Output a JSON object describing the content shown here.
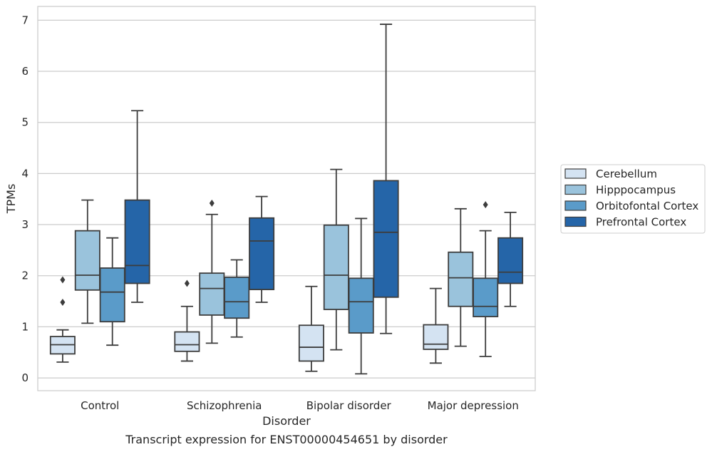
{
  "chart_data": {
    "type": "box",
    "title": "Transcript expression for ENST00000454651 by disorder",
    "xlabel": "Disorder",
    "ylabel": "TPMs",
    "ylim": [
      -0.25,
      7.27
    ],
    "yticks": [
      0,
      1,
      2,
      3,
      4,
      5,
      6,
      7
    ],
    "grid": true,
    "legend_position": "right",
    "categories": [
      "Control",
      "Schizophrenia",
      "Bipolar disorder",
      "Major depression"
    ],
    "series": [
      {
        "name": "Cerebellum",
        "color": "#d4e3f2",
        "boxes": [
          {
            "whisker_low": 0.31,
            "q1": 0.47,
            "median": 0.65,
            "q3": 0.81,
            "whisker_high": 0.94,
            "outliers": [
              1.48,
              1.92
            ]
          },
          {
            "whisker_low": 0.33,
            "q1": 0.52,
            "median": 0.65,
            "q3": 0.9,
            "whisker_high": 1.4,
            "outliers": [
              1.85
            ]
          },
          {
            "whisker_low": 0.13,
            "q1": 0.33,
            "median": 0.6,
            "q3": 1.03,
            "whisker_high": 1.79,
            "outliers": []
          },
          {
            "whisker_low": 0.29,
            "q1": 0.56,
            "median": 0.66,
            "q3": 1.04,
            "whisker_high": 1.75,
            "outliers": []
          }
        ]
      },
      {
        "name": "Hipppocampus",
        "color": "#9ac3dc",
        "boxes": [
          {
            "whisker_low": 1.07,
            "q1": 1.72,
            "median": 2.01,
            "q3": 2.88,
            "whisker_high": 3.48,
            "outliers": []
          },
          {
            "whisker_low": 0.68,
            "q1": 1.23,
            "median": 1.75,
            "q3": 2.05,
            "whisker_high": 3.2,
            "outliers": [
              3.42
            ]
          },
          {
            "whisker_low": 0.55,
            "q1": 1.34,
            "median": 2.01,
            "q3": 2.99,
            "whisker_high": 4.08,
            "outliers": []
          },
          {
            "whisker_low": 0.62,
            "q1": 1.4,
            "median": 1.96,
            "q3": 2.46,
            "whisker_high": 3.31,
            "outliers": []
          }
        ]
      },
      {
        "name": "Orbitofontal Cortex",
        "color": "#5a9bc9",
        "boxes": [
          {
            "whisker_low": 0.64,
            "q1": 1.1,
            "median": 1.68,
            "q3": 2.15,
            "whisker_high": 2.74,
            "outliers": []
          },
          {
            "whisker_low": 0.8,
            "q1": 1.17,
            "median": 1.49,
            "q3": 1.97,
            "whisker_high": 2.31,
            "outliers": []
          },
          {
            "whisker_low": 0.08,
            "q1": 0.88,
            "median": 1.49,
            "q3": 1.95,
            "whisker_high": 3.12,
            "outliers": []
          },
          {
            "whisker_low": 0.42,
            "q1": 1.2,
            "median": 1.4,
            "q3": 1.95,
            "whisker_high": 2.88,
            "outliers": [
              3.39
            ]
          }
        ]
      },
      {
        "name": "Prefrontal Cortex",
        "color": "#2565a8",
        "boxes": [
          {
            "whisker_low": 1.48,
            "q1": 1.85,
            "median": 2.2,
            "q3": 3.48,
            "whisker_high": 5.23,
            "outliers": []
          },
          {
            "whisker_low": 1.48,
            "q1": 1.73,
            "median": 2.68,
            "q3": 3.13,
            "whisker_high": 3.55,
            "outliers": []
          },
          {
            "whisker_low": 0.87,
            "q1": 1.58,
            "median": 2.85,
            "q3": 3.86,
            "whisker_high": 6.92,
            "outliers": []
          },
          {
            "whisker_low": 1.4,
            "q1": 1.85,
            "median": 2.07,
            "q3": 2.74,
            "whisker_high": 3.24,
            "outliers": []
          }
        ]
      }
    ]
  }
}
